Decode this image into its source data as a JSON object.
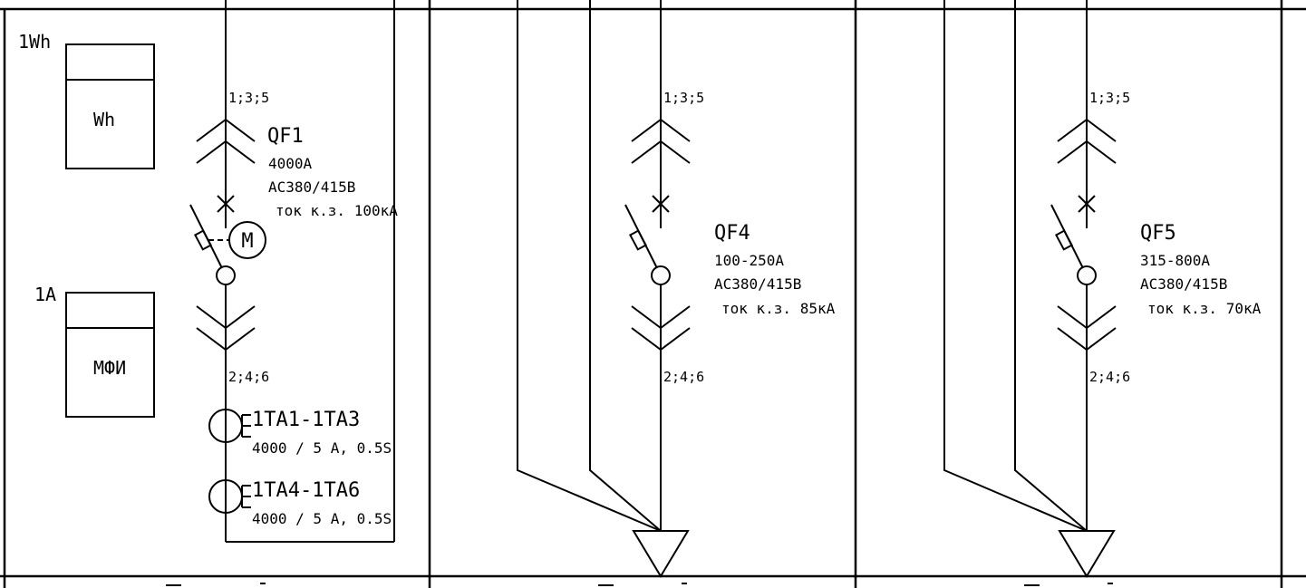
{
  "panel_left": {
    "meter": {
      "tag": "1Wh",
      "label": "Wh"
    },
    "ammeter": {
      "tag": "1A",
      "label": "МФИ"
    },
    "breaker": {
      "pins_top": "1;3;5",
      "name": "QF1",
      "current": "4000А",
      "voltage": "AC380/415В",
      "sc_current": "ток к.з. 100кА",
      "pins_bottom": "2;4;6",
      "motor_symbol": "M"
    },
    "ct1": {
      "name": "1TA1-1TA3",
      "spec": "4000 / 5 A, 0.5S"
    },
    "ct2": {
      "name": "1TA4-1TA6",
      "spec": "4000 / 5 A, 0.5S"
    }
  },
  "panel_mid": {
    "breaker": {
      "pins_top": "1;3;5",
      "name": "QF4",
      "current": "100-250А",
      "voltage": "AC380/415В",
      "sc_current": "ток к.з. 85кА",
      "pins_bottom": "2;4;6"
    }
  },
  "panel_right": {
    "breaker": {
      "pins_top": "1;3;5",
      "name": "QF5",
      "current": "315-800А",
      "voltage": "AC380/415В",
      "sc_current": "ток к.з. 70кА",
      "pins_bottom": "2;4;6"
    }
  }
}
